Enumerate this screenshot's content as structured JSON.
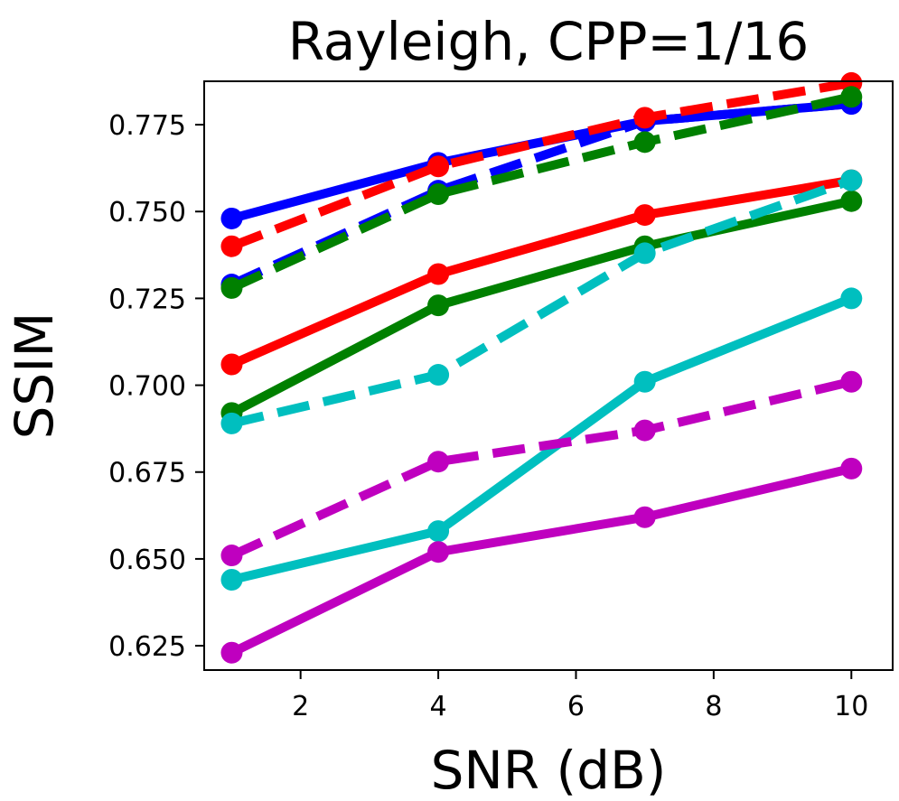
{
  "chart_data": {
    "type": "line",
    "title": "Rayleigh, CPP=1/16",
    "xlabel": "SNR (dB)",
    "ylabel": "SSIM",
    "xlim": [
      0.6,
      10.6
    ],
    "ylim": [
      0.618,
      0.7875
    ],
    "xticks": [
      2,
      4,
      6,
      8,
      10
    ],
    "xtick_labels": [
      "2",
      "4",
      "6",
      "8",
      "10"
    ],
    "yticks": [
      0.625,
      0.65,
      0.675,
      0.7,
      0.725,
      0.75,
      0.775
    ],
    "ytick_labels": [
      "0.625",
      "0.650",
      "0.675",
      "0.700",
      "0.725",
      "0.750",
      "0.775"
    ],
    "x": [
      1,
      4,
      7,
      10
    ],
    "series": [
      {
        "name": "blue-solid",
        "color": "#0000ff",
        "dashed": false,
        "values": [
          0.748,
          0.764,
          0.776,
          0.781
        ]
      },
      {
        "name": "blue-dashed",
        "color": "#0000ff",
        "dashed": true,
        "values": [
          0.729,
          0.756,
          0.776,
          0.781
        ]
      },
      {
        "name": "red-dashed",
        "color": "#ff0000",
        "dashed": true,
        "values": [
          0.74,
          0.763,
          0.777,
          0.787
        ]
      },
      {
        "name": "green-dashed",
        "color": "#008000",
        "dashed": true,
        "values": [
          0.728,
          0.755,
          0.77,
          0.783
        ]
      },
      {
        "name": "red-solid",
        "color": "#ff0000",
        "dashed": false,
        "values": [
          0.706,
          0.732,
          0.749,
          0.759
        ]
      },
      {
        "name": "green-solid",
        "color": "#008000",
        "dashed": false,
        "values": [
          0.692,
          0.723,
          0.74,
          0.753
        ]
      },
      {
        "name": "cyan-dashed",
        "color": "#00bfbf",
        "dashed": true,
        "values": [
          0.689,
          0.703,
          0.738,
          0.759
        ]
      },
      {
        "name": "cyan-solid",
        "color": "#00bfbf",
        "dashed": false,
        "values": [
          0.644,
          0.658,
          0.701,
          0.725
        ]
      },
      {
        "name": "magenta-dashed",
        "color": "#bf00bf",
        "dashed": true,
        "values": [
          0.651,
          0.678,
          0.687,
          0.701
        ]
      },
      {
        "name": "magenta-solid",
        "color": "#bf00bf",
        "dashed": false,
        "values": [
          0.623,
          0.652,
          0.662,
          0.676
        ]
      }
    ]
  }
}
